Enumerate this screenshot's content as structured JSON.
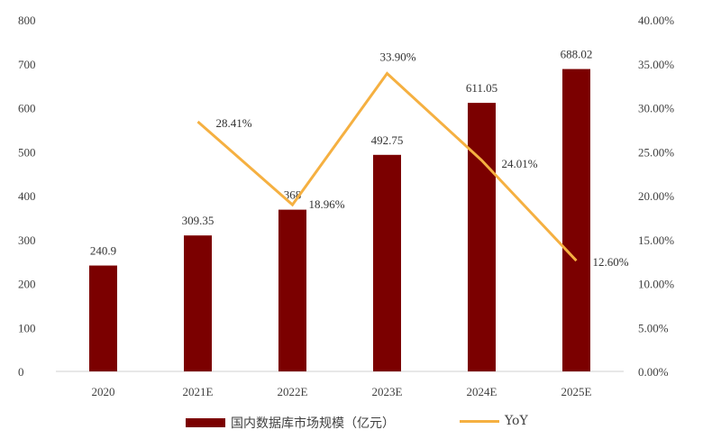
{
  "chart_data": {
    "type": "bar+line",
    "title": "",
    "categories": [
      "2020",
      "2021E",
      "2022E",
      "2023E",
      "2024E",
      "2025E"
    ],
    "series": [
      {
        "name": "国内数据库市场规模（亿元）",
        "type": "bar",
        "axis": "left",
        "color": "#7B0000",
        "values": [
          240.9,
          309.35,
          368,
          492.75,
          611.05,
          688.02
        ],
        "labels": [
          "240.9",
          "309.35",
          "368",
          "492.75",
          "611.05",
          "688.02"
        ]
      },
      {
        "name": "YoY",
        "type": "line",
        "axis": "right",
        "color": "#F5B041",
        "values": [
          null,
          28.41,
          18.96,
          33.9,
          24.01,
          12.6
        ],
        "labels": [
          "",
          "28.41%",
          "18.96%",
          "33.90%",
          "24.01%",
          "12.60%"
        ]
      }
    ],
    "y_left": {
      "min": 0,
      "max": 800,
      "step": 100,
      "ticks": [
        "0",
        "100",
        "200",
        "300",
        "400",
        "500",
        "600",
        "700",
        "800"
      ]
    },
    "y_right": {
      "min": 0,
      "max": 40,
      "step": 5,
      "ticks": [
        "0.00%",
        "5.00%",
        "10.00%",
        "15.00%",
        "20.00%",
        "25.00%",
        "30.00%",
        "35.00%",
        "40.00%"
      ]
    },
    "grid": false,
    "legend_position": "bottom"
  },
  "legend": {
    "bar_label": "国内数据库市场规模（亿元）",
    "line_label": "YoY"
  }
}
